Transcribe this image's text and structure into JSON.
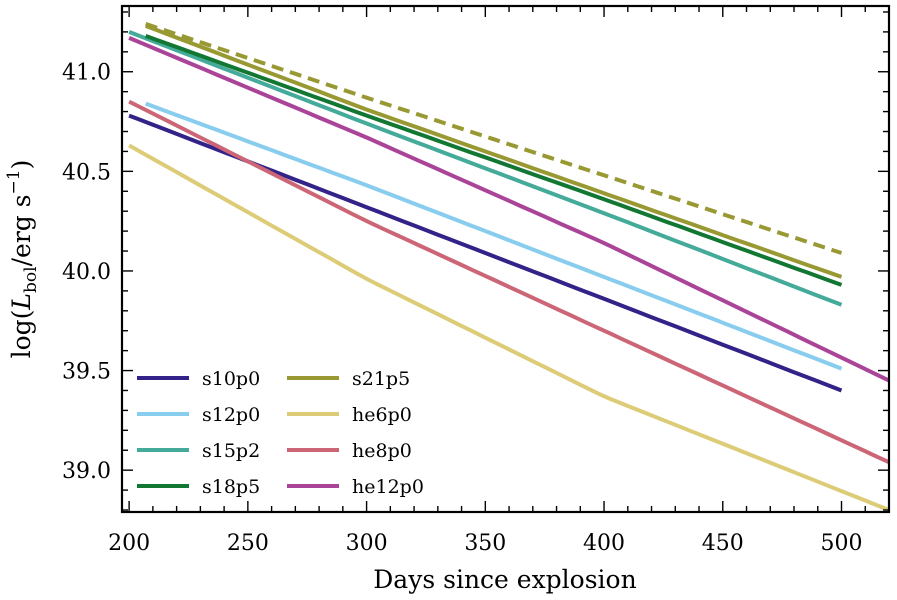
{
  "chart_data": {
    "type": "line",
    "xlabel": "Days since explosion",
    "ylabel": {
      "prefix": "log(",
      "symbol": "L",
      "subscript": "bol",
      "middle": "/erg s",
      "superscript": "−1",
      "suffix": ")"
    },
    "xlim": [
      197,
      520
    ],
    "ylim": [
      38.79,
      41.33
    ],
    "xticks": [
      200,
      250,
      300,
      350,
      400,
      450,
      500
    ],
    "yticks": [
      39.0,
      39.5,
      40.0,
      40.5,
      41.0
    ],
    "ytick_labels": [
      "39.0",
      "39.5",
      "40.0",
      "40.5",
      "41.0"
    ],
    "grid": false,
    "legend_position": "bottom-left",
    "series": [
      {
        "name": "s10p0",
        "color": "#332288",
        "dash": "solid",
        "x": [
          200,
          300,
          400,
          500
        ],
        "y": [
          40.78,
          40.32,
          39.86,
          39.4
        ]
      },
      {
        "name": "s12p0",
        "color": "#88ccee",
        "dash": "solid",
        "x": [
          207,
          300,
          400,
          500
        ],
        "y": [
          40.84,
          40.43,
          39.97,
          39.51
        ]
      },
      {
        "name": "s15p2",
        "color": "#44aa99",
        "dash": "solid",
        "x": [
          200,
          300,
          400,
          500
        ],
        "y": [
          41.2,
          40.74,
          40.29,
          39.83
        ]
      },
      {
        "name": "s18p5",
        "color": "#117733",
        "dash": "solid",
        "x": [
          207,
          300,
          400,
          500
        ],
        "y": [
          41.18,
          40.78,
          40.36,
          39.93
        ]
      },
      {
        "name": "s21p5",
        "color": "#999933",
        "dash": "solid",
        "x": [
          207,
          300,
          400,
          500
        ],
        "y": [
          41.23,
          40.81,
          40.39,
          39.97
        ]
      },
      {
        "name": "",
        "color": "#999933",
        "dash": "dashed",
        "x": [
          207,
          300,
          400,
          500
        ],
        "y": [
          41.24,
          40.87,
          40.48,
          40.09
        ]
      },
      {
        "name": "he6p0",
        "color": "#ddcc77",
        "dash": "solid",
        "x": [
          200,
          300,
          400,
          520
        ],
        "y": [
          40.63,
          39.96,
          39.37,
          38.8
        ]
      },
      {
        "name": "he8p0",
        "color": "#cc6677",
        "dash": "solid",
        "x": [
          200,
          300,
          400,
          520
        ],
        "y": [
          40.85,
          40.25,
          39.7,
          39.04
        ]
      },
      {
        "name": "he12p0",
        "color": "#aa4499",
        "dash": "solid",
        "x": [
          200,
          300,
          400,
          520
        ],
        "y": [
          41.17,
          40.67,
          40.14,
          39.45
        ]
      }
    ]
  }
}
